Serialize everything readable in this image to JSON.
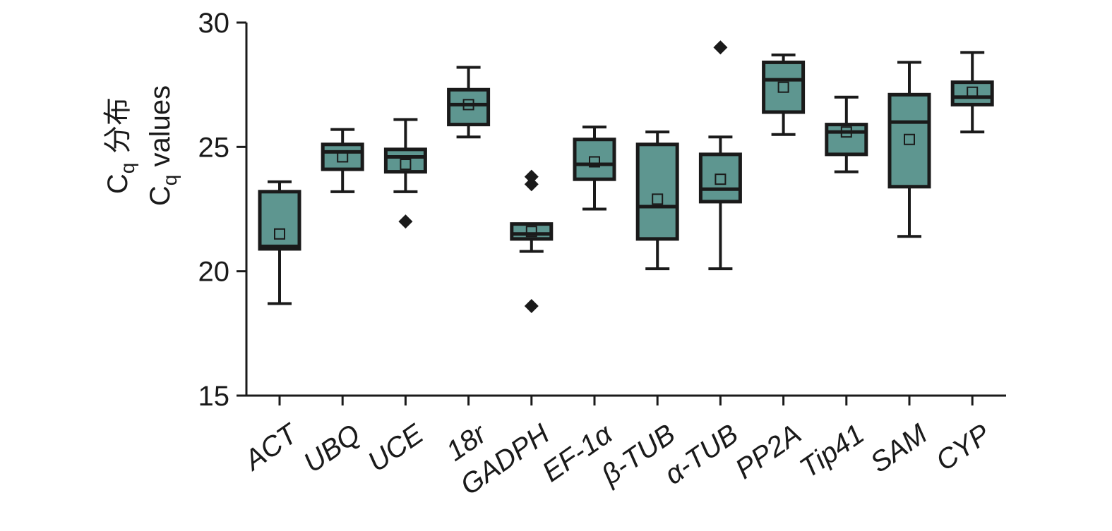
{
  "chart_data": {
    "type": "box",
    "ylabel_line1": "C",
    "ylabel_line1_sub": "q",
    "ylabel_line1_suffix": "分布",
    "ylabel_line2": "C",
    "ylabel_line2_sub": "q",
    "ylabel_line2_suffix": "values",
    "ylim": [
      15,
      30
    ],
    "yticks": [
      "15",
      "20",
      "25",
      "30"
    ],
    "categories": [
      "ACT",
      "UBQ",
      "UCE",
      "18r",
      "GADPH",
      "EF-1α",
      "β-TUB",
      "α-TUB",
      "PP2A",
      "Tip41",
      "SAM",
      "CYP"
    ],
    "boxes": [
      {
        "whisker_low": 18.7,
        "q1": 20.9,
        "median": 21.0,
        "q3": 23.2,
        "whisker_high": 23.6,
        "mean": 21.5,
        "outliers": []
      },
      {
        "whisker_low": 23.2,
        "q1": 24.1,
        "median": 24.8,
        "q3": 25.1,
        "whisker_high": 25.7,
        "mean": 24.6,
        "outliers": []
      },
      {
        "whisker_low": 23.2,
        "q1": 24.0,
        "median": 24.6,
        "q3": 24.9,
        "whisker_high": 26.1,
        "mean": 24.3,
        "outliers": [
          22.0
        ]
      },
      {
        "whisker_low": 25.4,
        "q1": 25.9,
        "median": 26.7,
        "q3": 27.3,
        "whisker_high": 28.2,
        "mean": 26.7,
        "outliers": []
      },
      {
        "whisker_low": 20.8,
        "q1": 21.3,
        "median": 21.5,
        "q3": 21.9,
        "whisker_high": 21.9,
        "mean": 21.6,
        "outliers": [
          23.8,
          23.5,
          18.6
        ]
      },
      {
        "whisker_low": 22.5,
        "q1": 23.7,
        "median": 24.3,
        "q3": 25.3,
        "whisker_high": 25.8,
        "mean": 24.4,
        "outliers": []
      },
      {
        "whisker_low": 20.1,
        "q1": 21.3,
        "median": 22.6,
        "q3": 25.1,
        "whisker_high": 25.6,
        "mean": 22.9,
        "outliers": []
      },
      {
        "whisker_low": 20.1,
        "q1": 22.8,
        "median": 23.3,
        "q3": 24.7,
        "whisker_high": 25.4,
        "mean": 23.7,
        "outliers": [
          29.0
        ]
      },
      {
        "whisker_low": 25.5,
        "q1": 26.4,
        "median": 27.7,
        "q3": 28.4,
        "whisker_high": 28.7,
        "mean": 27.4,
        "outliers": []
      },
      {
        "whisker_low": 24.0,
        "q1": 24.7,
        "median": 25.6,
        "q3": 25.9,
        "whisker_high": 27.0,
        "mean": 25.6,
        "outliers": []
      },
      {
        "whisker_low": 21.4,
        "q1": 23.4,
        "median": 26.0,
        "q3": 27.1,
        "whisker_high": 28.4,
        "mean": 25.3,
        "outliers": []
      },
      {
        "whisker_low": 25.6,
        "q1": 26.7,
        "median": 27.0,
        "q3": 27.6,
        "whisker_high": 28.8,
        "mean": 27.2,
        "outliers": []
      }
    ],
    "colors": {
      "box_fill": "#5e9690",
      "stroke": "#1a1a1a"
    },
    "grid": false,
    "legend": "none"
  }
}
